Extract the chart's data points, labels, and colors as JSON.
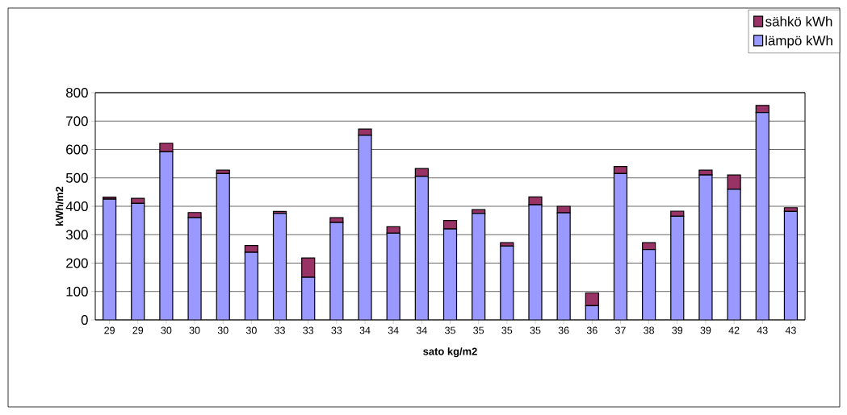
{
  "chart_data": {
    "type": "bar",
    "stacked": true,
    "categories": [
      "29",
      "29",
      "30",
      "30",
      "30",
      "30",
      "33",
      "33",
      "33",
      "34",
      "34",
      "34",
      "35",
      "35",
      "35",
      "35",
      "36",
      "36",
      "37",
      "38",
      "39",
      "39",
      "42",
      "43",
      "43"
    ],
    "series": [
      {
        "name": "lämpö kWh",
        "color": "#9999ff",
        "values": [
          425,
          410,
          592,
          360,
          515,
          238,
          375,
          150,
          343,
          650,
          305,
          505,
          320,
          375,
          260,
          405,
          377,
          50,
          515,
          248,
          365,
          510,
          460,
          730,
          382
        ]
      },
      {
        "name": "sähkö kWh",
        "color": "#993366",
        "values": [
          7,
          18,
          30,
          18,
          12,
          24,
          7,
          68,
          17,
          22,
          23,
          28,
          30,
          13,
          12,
          28,
          23,
          45,
          25,
          24,
          18,
          17,
          50,
          25,
          13
        ]
      }
    ],
    "xlabel": "sato kg/m2",
    "ylabel": "kWh/m2",
    "ylim": [
      0,
      800
    ],
    "yticks": [
      0,
      100,
      200,
      300,
      400,
      500,
      600,
      700,
      800
    ],
    "grid": "y",
    "legend": "top right"
  }
}
